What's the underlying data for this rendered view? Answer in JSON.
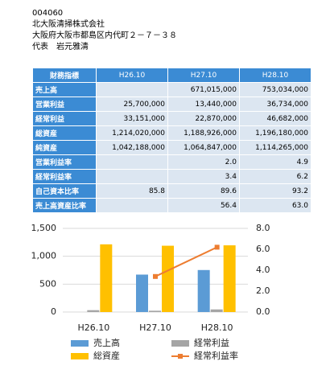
{
  "header": {
    "code": "004060",
    "company": "北大阪清掃株式会社",
    "address": "大阪府大阪市都島区内代町２－７－３８",
    "representative": "代表　岩元雅清"
  },
  "table": {
    "columns": [
      "財務指標",
      "H26.10",
      "H27.10",
      "H28.10"
    ],
    "rows": [
      [
        "売上高",
        null,
        "671,015,000",
        "753,034,000"
      ],
      [
        "営業利益",
        "25,700,000",
        "13,440,000",
        "36,734,000"
      ],
      [
        "経常利益",
        "33,151,000",
        "22,870,000",
        "46,682,000"
      ],
      [
        "総資産",
        "1,214,020,000",
        "1,188,926,000",
        "1,196,180,000"
      ],
      [
        "純資産",
        "1,042,188,000",
        "1,064,847,000",
        "1,114,265,000"
      ],
      [
        "営業利益率",
        null,
        "2.0",
        "4.9"
      ],
      [
        "経常利益率",
        null,
        "3.4",
        "6.2"
      ],
      [
        "自己資本比率",
        "85.8",
        "89.6",
        "93.2"
      ],
      [
        "売上高資産比率",
        null,
        "56.4",
        "63.0"
      ]
    ]
  },
  "chart_data": {
    "type": "bar",
    "categories": [
      "H26.10",
      "H27.10",
      "H28.10"
    ],
    "series": [
      {
        "name": "売上高",
        "color": "#5b9bd5",
        "values": [
          null,
          671.015,
          753.034
        ]
      },
      {
        "name": "経常利益",
        "color": "#a5a5a5",
        "values": [
          33.151,
          22.87,
          46.682
        ]
      },
      {
        "name": "総資産",
        "color": "#ffc000",
        "values": [
          1214.02,
          1188.926,
          1196.18
        ]
      },
      {
        "name": "経常利益率",
        "type": "line",
        "axis": "y2",
        "color": "#ed7d31",
        "values": [
          null,
          3.4,
          6.2
        ]
      }
    ],
    "ylim": [
      0,
      1500
    ],
    "yticks": [
      0,
      500,
      {
        "value": 1000,
        "label": "1,000"
      },
      {
        "value": 1500,
        "label": "1,500"
      }
    ],
    "y2lim": [
      0,
      8
    ],
    "y2ticks": [
      {
        "value": 0,
        "label": "0.0"
      },
      {
        "value": 2,
        "label": "2.0"
      },
      {
        "value": 4,
        "label": "4.0"
      },
      {
        "value": 6,
        "label": "6.0"
      },
      {
        "value": 8,
        "label": "8.0"
      }
    ],
    "grid": true
  }
}
